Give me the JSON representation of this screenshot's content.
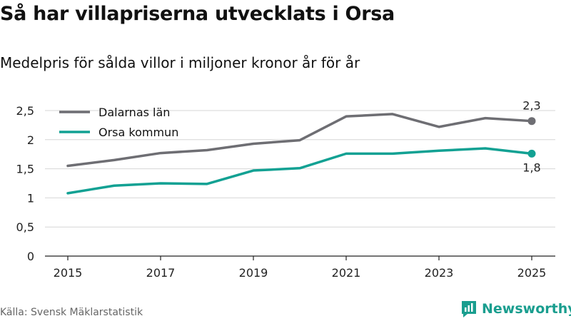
{
  "header": {
    "title": "Så har villapriserna utvecklats i Orsa",
    "subtitle": "Medelpris för sålda villor i miljoner kronor år för år"
  },
  "footer": {
    "source": "Källa: Svensk Mäklarstatistik",
    "logo_text": "Newsworthy"
  },
  "colors": {
    "dalarna": "#6e6e73",
    "orsa": "#12a193",
    "grid": "#d6d6d6",
    "axis": "#222222",
    "brand": "#1a9e8f"
  },
  "chart_data": {
    "type": "line",
    "title": "Så har villapriserna utvecklats i Orsa",
    "subtitle": "Medelpris för sålda villor i miljoner kronor år för år",
    "xlabel": "",
    "ylabel": "",
    "x": [
      2015,
      2016,
      2017,
      2018,
      2019,
      2020,
      2021,
      2022,
      2023,
      2024,
      2025
    ],
    "xticks": [
      "2015",
      "2017",
      "2019",
      "2021",
      "2023",
      "2025"
    ],
    "ylim": [
      0,
      2.5
    ],
    "yticks": [
      {
        "value": 0,
        "label": "0"
      },
      {
        "value": 0.5,
        "label": "0,5"
      },
      {
        "value": 1,
        "label": "1"
      },
      {
        "value": 1.5,
        "label": "1,5"
      },
      {
        "value": 2,
        "label": "2"
      },
      {
        "value": 2.5,
        "label": "2,5"
      }
    ],
    "grid": true,
    "legend": "top-left",
    "series": [
      {
        "name": "Dalarnas län",
        "key": "dalarna",
        "values": [
          1.55,
          1.65,
          1.77,
          1.82,
          1.93,
          1.99,
          2.4,
          2.44,
          2.22,
          2.37,
          2.32
        ],
        "end_label": "2,3",
        "end_label_position": "above"
      },
      {
        "name": "Orsa kommun",
        "key": "orsa",
        "values": [
          1.08,
          1.21,
          1.25,
          1.24,
          1.47,
          1.51,
          1.76,
          1.76,
          1.81,
          1.85,
          1.76
        ],
        "end_label": "1,8",
        "end_label_position": "below"
      }
    ]
  }
}
